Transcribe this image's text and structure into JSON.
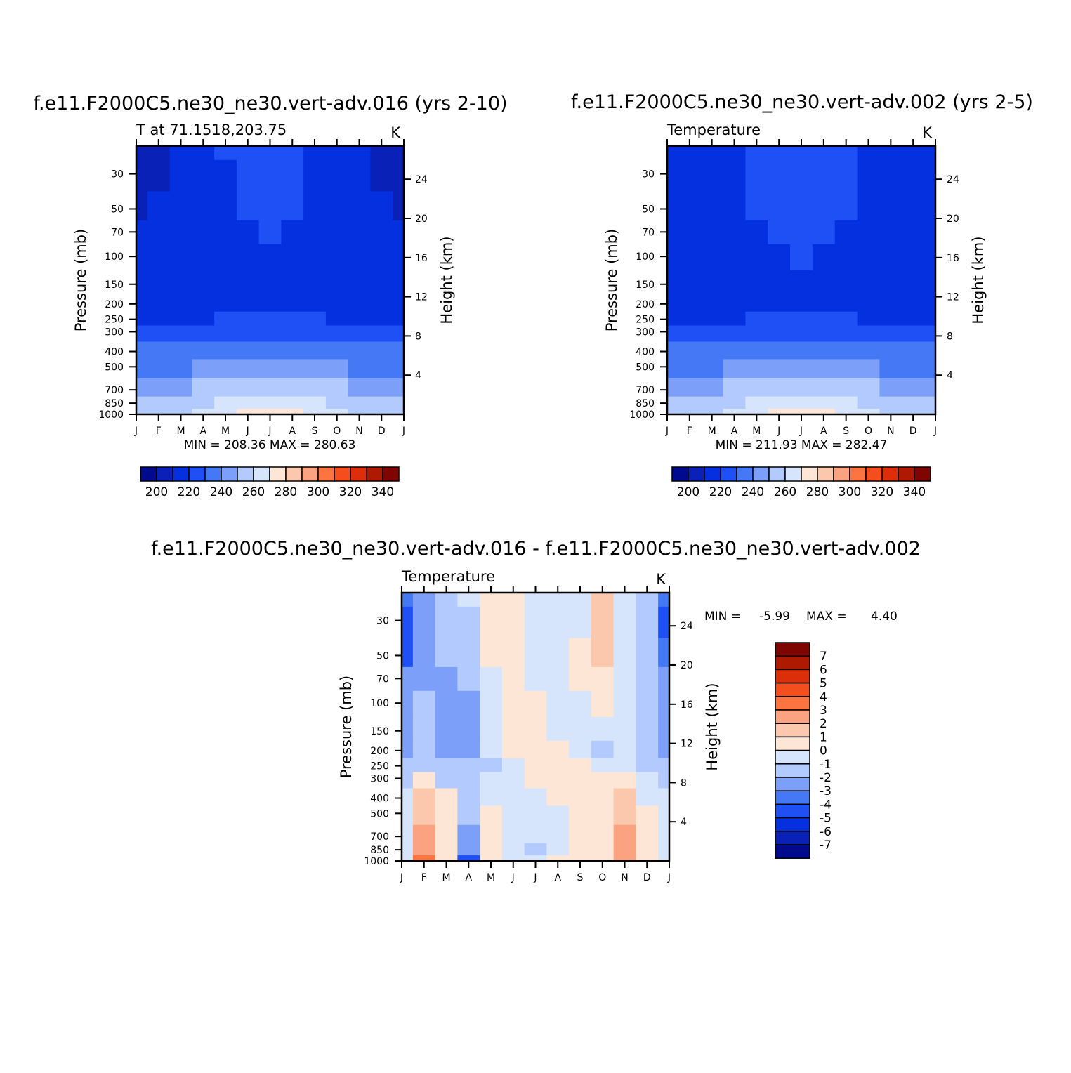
{
  "page": {
    "title_run1": "f.e11.F2000C5.ne30_ne30.vert-adv.016 (yrs 2-10)",
    "title_run2": "f.e11.F2000C5.ne30_ne30.vert-adv.002 (yrs 2-5)",
    "title_diff": "f.e11.F2000C5.ne30_ne30.vert-adv.016 - f.e11.F2000C5.ne30_ne30.vert-adv.002"
  },
  "chart_data": [
    {
      "id": "run1",
      "type": "heatmap",
      "subtitle": "T at 71.1518,203.75",
      "units": "K",
      "xlabel": "",
      "ylabel": "Pressure (mb)",
      "y2label": "Height (km)",
      "months": [
        "J",
        "F",
        "M",
        "A",
        "M",
        "J",
        "J",
        "A",
        "S",
        "O",
        "N",
        "D",
        "J"
      ],
      "pressure_ticks": [
        30,
        50,
        70,
        100,
        150,
        200,
        250,
        300,
        400,
        500,
        700,
        850,
        1000
      ],
      "height_ticks": [
        4,
        8,
        12,
        16,
        20,
        24
      ],
      "ylim": [
        1000,
        20
      ],
      "y_scale": "log",
      "pressure_levels": [
        20,
        30,
        50,
        70,
        100,
        150,
        200,
        250,
        300,
        400,
        500,
        700,
        850,
        1000
      ],
      "values": [
        [
          205,
          207,
          211,
          216,
          220,
          222,
          223,
          222,
          219,
          214,
          210,
          207,
          205
        ],
        [
          207,
          209,
          212,
          216,
          219,
          221,
          222,
          221,
          218,
          215,
          211,
          209,
          207
        ],
        [
          209,
          211,
          213,
          215,
          218,
          220,
          221,
          220,
          217,
          214,
          212,
          211,
          209
        ],
        [
          211,
          212,
          213,
          215,
          217,
          219,
          220,
          219,
          217,
          215,
          213,
          212,
          211
        ],
        [
          213,
          213,
          214,
          215,
          216,
          218,
          219,
          218,
          216,
          215,
          214,
          214,
          213
        ],
        [
          214,
          214,
          214,
          215,
          216,
          217,
          218,
          217,
          216,
          215,
          215,
          215,
          214
        ],
        [
          215,
          215,
          215,
          216,
          217,
          218,
          219,
          218,
          217,
          216,
          215,
          215,
          215
        ],
        [
          218,
          218,
          218,
          219,
          220,
          221,
          222,
          221,
          220,
          219,
          218,
          218,
          218
        ],
        [
          223,
          223,
          223,
          224,
          226,
          227,
          228,
          227,
          226,
          224,
          223,
          223,
          223
        ],
        [
          231,
          231,
          231,
          233,
          235,
          237,
          238,
          237,
          235,
          233,
          231,
          231,
          231
        ],
        [
          237,
          237,
          238,
          240,
          242,
          245,
          246,
          245,
          242,
          240,
          238,
          237,
          237
        ],
        [
          248,
          248,
          249,
          251,
          254,
          256,
          257,
          256,
          254,
          251,
          249,
          248,
          248
        ],
        [
          253,
          253,
          254,
          257,
          262,
          265,
          266,
          265,
          262,
          258,
          255,
          253,
          253
        ],
        [
          257,
          257,
          258,
          261,
          268,
          274,
          275,
          274,
          268,
          262,
          258,
          257,
          257
        ]
      ],
      "stats": "MIN = 208.36 MAX = 280.63",
      "colorbar_labels": [
        "200",
        "220",
        "240",
        "260",
        "280",
        "300",
        "320",
        "340"
      ]
    },
    {
      "id": "run2",
      "type": "heatmap",
      "subtitle": "Temperature",
      "units": "K",
      "xlabel": "",
      "ylabel": "Pressure (mb)",
      "y2label": "Height (km)",
      "months": [
        "J",
        "F",
        "M",
        "A",
        "M",
        "J",
        "J",
        "A",
        "S",
        "O",
        "N",
        "D",
        "J"
      ],
      "pressure_ticks": [
        30,
        50,
        70,
        100,
        150,
        200,
        250,
        300,
        400,
        500,
        700,
        850,
        1000
      ],
      "height_ticks": [
        4,
        8,
        12,
        16,
        20,
        24
      ],
      "ylim": [
        1000,
        20
      ],
      "y_scale": "log",
      "pressure_levels": [
        20,
        30,
        50,
        70,
        100,
        150,
        200,
        250,
        300,
        400,
        500,
        700,
        850,
        1000
      ],
      "values": [
        [
          211,
          213,
          216,
          219,
          222,
          224,
          225,
          224,
          222,
          219,
          216,
          213,
          211
        ],
        [
          211,
          213,
          215,
          218,
          221,
          223,
          224,
          223,
          221,
          218,
          215,
          213,
          211
        ],
        [
          212,
          213,
          215,
          217,
          220,
          222,
          223,
          222,
          220,
          217,
          215,
          213,
          212
        ],
        [
          213,
          214,
          215,
          216,
          219,
          221,
          222,
          221,
          219,
          217,
          215,
          214,
          213
        ],
        [
          214,
          214,
          215,
          216,
          218,
          219,
          220,
          219,
          218,
          216,
          215,
          214,
          214
        ],
        [
          215,
          215,
          215,
          216,
          217,
          218,
          218,
          218,
          217,
          216,
          215,
          215,
          215
        ],
        [
          215,
          215,
          216,
          216,
          217,
          218,
          219,
          218,
          217,
          216,
          216,
          215,
          215
        ],
        [
          218,
          218,
          218,
          219,
          220,
          221,
          222,
          221,
          220,
          219,
          218,
          218,
          218
        ],
        [
          223,
          223,
          223,
          224,
          226,
          227,
          228,
          227,
          226,
          224,
          223,
          223,
          223
        ],
        [
          231,
          231,
          231,
          233,
          235,
          237,
          238,
          237,
          235,
          233,
          231,
          231,
          231
        ],
        [
          237,
          237,
          238,
          240,
          242,
          245,
          246,
          245,
          242,
          240,
          238,
          237,
          237
        ],
        [
          248,
          248,
          249,
          251,
          254,
          256,
          257,
          256,
          254,
          251,
          249,
          248,
          248
        ],
        [
          253,
          253,
          254,
          257,
          262,
          265,
          266,
          265,
          262,
          258,
          255,
          253,
          253
        ],
        [
          257,
          257,
          258,
          261,
          268,
          274,
          276,
          274,
          268,
          262,
          258,
          257,
          257
        ]
      ],
      "stats": "MIN = 211.93 MAX = 282.47",
      "colorbar_labels": [
        "200",
        "220",
        "240",
        "260",
        "280",
        "300",
        "320",
        "340"
      ]
    },
    {
      "id": "diff",
      "type": "heatmap",
      "subtitle": "Temperature",
      "units": "K",
      "xlabel": "",
      "ylabel": "Pressure (mb)",
      "y2label": "Height (km)",
      "months": [
        "J",
        "F",
        "M",
        "A",
        "M",
        "J",
        "J",
        "A",
        "S",
        "O",
        "N",
        "D",
        "J"
      ],
      "pressure_ticks": [
        30,
        50,
        70,
        100,
        150,
        200,
        250,
        300,
        400,
        500,
        700,
        850,
        1000
      ],
      "height_ticks": [
        4,
        8,
        12,
        16,
        20,
        24
      ],
      "ylim": [
        1000,
        20
      ],
      "y_scale": "log",
      "pressure_levels": [
        20,
        30,
        50,
        70,
        100,
        150,
        200,
        250,
        300,
        400,
        500,
        700,
        850,
        1000
      ],
      "values": [
        [
          -4,
          -2.5,
          -1.5,
          -0.5,
          0.5,
          0.5,
          -0.5,
          -0.5,
          -0.5,
          1.5,
          -0.5,
          -1.5,
          -4
        ],
        [
          -5,
          -2.5,
          -2,
          -1.5,
          0.5,
          0.5,
          -0.5,
          -0.5,
          -0.5,
          1.5,
          -0.5,
          -1.5,
          -5
        ],
        [
          -4.5,
          -3,
          -2,
          -1.5,
          0.5,
          0.5,
          -0.5,
          -0.5,
          0.5,
          1,
          -0.5,
          -1.5,
          -4
        ],
        [
          -3,
          -2.5,
          -2.5,
          -1.5,
          -0.5,
          0.5,
          -0.5,
          -0.5,
          0.5,
          0.5,
          -0.5,
          -1.5,
          -3
        ],
        [
          -2.5,
          -2,
          -2.5,
          -2.5,
          -0.5,
          0.5,
          0.5,
          -0.5,
          -0.5,
          0.5,
          -0.5,
          -1.5,
          -2.5
        ],
        [
          -2.5,
          -2,
          -2.5,
          -2.5,
          -0.5,
          0.5,
          0.5,
          -0.5,
          -0.5,
          -0.5,
          -0.5,
          -1.5,
          -2.5
        ],
        [
          -2.5,
          -2,
          -2.5,
          -2.5,
          -0.5,
          0.5,
          0.5,
          0.5,
          -0.5,
          -1.5,
          -0.5,
          -1.5,
          -2.5
        ],
        [
          -1.5,
          -1.5,
          -1.5,
          -1.5,
          -1.5,
          -0.5,
          0.5,
          0.5,
          0.5,
          -0.5,
          -0.5,
          -1.5,
          -1.5
        ],
        [
          -1.5,
          0.5,
          -1.5,
          -1.5,
          -0.5,
          -0.5,
          0.5,
          0.5,
          0.5,
          0.5,
          0.5,
          -0.5,
          -1.5
        ],
        [
          -0.5,
          1.5,
          0.5,
          -1.5,
          -0.5,
          -0.5,
          -0.5,
          0.5,
          0.5,
          0.5,
          1.5,
          -0.5,
          -0.5
        ],
        [
          -0.5,
          1.5,
          0.5,
          -1.5,
          0.5,
          -0.5,
          -0.5,
          -0.5,
          0.5,
          0.5,
          1.5,
          0.5,
          -0.5
        ],
        [
          -0.5,
          2,
          0.5,
          -2.5,
          0.5,
          -0.5,
          -0.5,
          -0.5,
          0.5,
          0.5,
          2,
          0.5,
          -0.5
        ],
        [
          -0.5,
          2.5,
          0.5,
          -3,
          0.5,
          -0.5,
          -1.5,
          -0.5,
          0.5,
          0.5,
          2.5,
          0.5,
          -0.5
        ],
        [
          -0.5,
          3.5,
          0.5,
          -4.5,
          0.5,
          -0.5,
          -0.5,
          0.5,
          0.5,
          0.5,
          2.5,
          0.5,
          -0.5
        ]
      ],
      "stats_min_label": "MIN =",
      "stats_min": "-5.99",
      "stats_max_label": "MAX =",
      "stats_max": "4.40",
      "colorbar_labels": [
        "7",
        "6",
        "5",
        "4",
        "3",
        "2",
        "1",
        "0",
        "-1",
        "-2",
        "-3",
        "-4",
        "-5",
        "-6",
        "-7"
      ]
    }
  ],
  "colors": {
    "palette": [
      "#000a8c",
      "#0a21b8",
      "#0530e0",
      "#1e50f5",
      "#4578f5",
      "#7ca0fa",
      "#b3caff",
      "#d6e5fc",
      "#fde6d5",
      "#fbc7ad",
      "#fba280",
      "#fc7440",
      "#f54e1e",
      "#dd2e0a",
      "#ad1a00",
      "#7f0500"
    ],
    "diff_palette": [
      "#000a8c",
      "#0a21b8",
      "#0530e0",
      "#1e50f5",
      "#4578f5",
      "#7ca0fa",
      "#b3caff",
      "#d6e5fc",
      "#fde6d5",
      "#fbc7ad",
      "#fba280",
      "#fc7440",
      "#f54e1e",
      "#dd2e0a",
      "#ad1a00",
      "#7f0500"
    ]
  }
}
